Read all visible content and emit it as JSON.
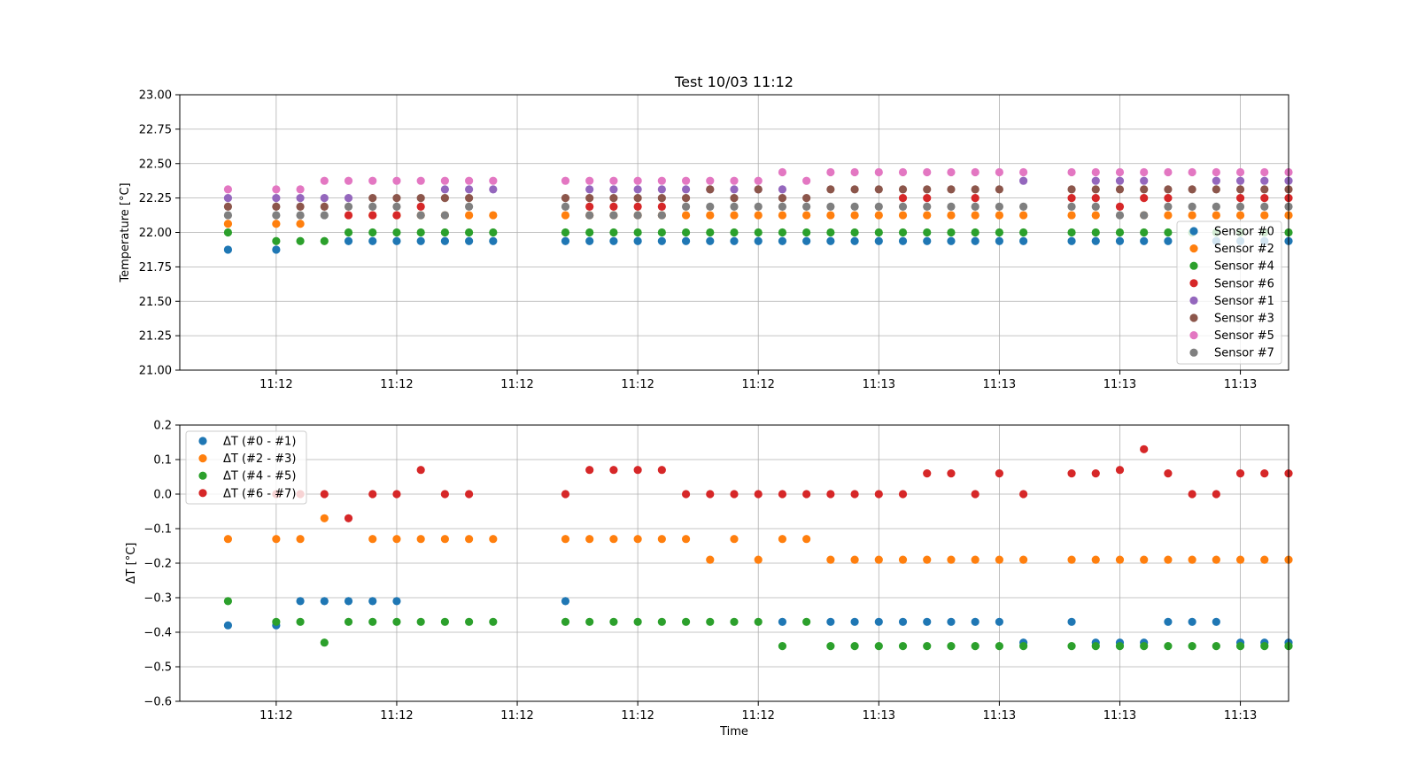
{
  "colors": {
    "c0": "#1f77b4",
    "c1": "#ff7f0e",
    "c2": "#2ca02c",
    "c3": "#d62728",
    "c4": "#9467bd",
    "c5": "#8c564b",
    "c6": "#e377c2",
    "c7": "#7f7f7f",
    "grid": "#b0b0b0",
    "axis": "#000000",
    "legend_border": "#cccccc"
  },
  "chart_data": [
    {
      "type": "scatter",
      "title": "Test 10/03 11:12",
      "xlabel": "",
      "ylabel": "Temperature [°C]",
      "ylim": [
        21.0,
        23.0
      ],
      "yticks": [
        "21.00",
        "21.25",
        "21.50",
        "21.75",
        "22.00",
        "22.25",
        "22.50",
        "22.75",
        "23.00"
      ],
      "xlim": [
        0,
        46
      ],
      "xtick_positions": [
        4,
        9,
        14,
        19,
        24,
        29,
        34,
        39,
        44
      ],
      "xtick_labels": [
        "11:12",
        "11:12",
        "11:12",
        "11:12",
        "11:12",
        "11:13",
        "11:13",
        "11:13",
        "11:13"
      ],
      "grid": true,
      "legend_position": "center-right",
      "x": [
        2,
        4,
        5,
        6,
        7,
        8,
        9,
        10,
        11,
        12,
        13,
        16,
        17,
        18,
        19,
        20,
        21,
        22,
        23,
        24,
        25,
        26,
        27,
        28,
        29,
        30,
        31,
        32,
        33,
        34,
        35,
        36,
        37,
        38,
        39,
        40,
        41,
        42,
        43,
        44,
        45,
        46
      ],
      "series": [
        {
          "name": "Sensor #0",
          "color": "c0",
          "values": [
            21.875,
            21.875,
            null,
            null,
            21.9375,
            21.9375,
            21.9375,
            21.9375,
            21.9375,
            21.9375,
            21.9375,
            21.9375,
            21.9375,
            21.9375,
            21.9375,
            21.9375,
            21.9375,
            21.9375,
            21.9375,
            21.9375,
            21.9375,
            21.9375,
            21.9375,
            21.9375,
            21.9375,
            21.9375,
            21.9375,
            21.9375,
            21.9375,
            21.9375,
            21.9375,
            null,
            21.9375,
            21.9375,
            21.9375,
            21.9375,
            21.9375,
            null,
            21.9375,
            21.9375,
            21.9375,
            21.9375
          ]
        },
        {
          "name": "Sensor #2",
          "color": "c1",
          "values": [
            22.0625,
            22.0625,
            22.0625,
            null,
            null,
            22.125,
            22.125,
            22.125,
            22.125,
            22.125,
            22.125,
            22.125,
            22.125,
            22.125,
            22.125,
            22.125,
            22.125,
            22.125,
            22.125,
            22.125,
            22.125,
            22.125,
            22.125,
            22.125,
            22.125,
            22.125,
            22.125,
            22.125,
            22.125,
            22.125,
            22.125,
            null,
            22.125,
            22.125,
            null,
            22.125,
            22.125,
            22.125,
            22.125,
            22.125,
            22.125,
            22.125
          ]
        },
        {
          "name": "Sensor #4",
          "color": "c2",
          "values": [
            22.0,
            21.9375,
            21.9375,
            21.9375,
            22.0,
            22.0,
            22.0,
            22.0,
            22.0,
            22.0,
            22.0,
            22.0,
            22.0,
            22.0,
            22.0,
            22.0,
            22.0,
            22.0,
            22.0,
            22.0,
            22.0,
            22.0,
            22.0,
            22.0,
            22.0,
            22.0,
            22.0,
            22.0,
            22.0,
            22.0,
            22.0,
            null,
            22.0,
            22.0,
            22.0,
            22.0,
            22.0,
            22.0,
            22.0,
            22.0,
            22.0,
            22.0
          ]
        },
        {
          "name": "Sensor #6",
          "color": "c3",
          "values": [
            null,
            null,
            null,
            null,
            22.125,
            22.125,
            22.125,
            22.1875,
            null,
            null,
            null,
            null,
            22.1875,
            22.1875,
            22.1875,
            22.1875,
            null,
            null,
            null,
            null,
            null,
            null,
            null,
            null,
            null,
            22.25,
            22.25,
            null,
            22.25,
            null,
            null,
            null,
            22.25,
            22.25,
            22.1875,
            22.25,
            22.25,
            null,
            null,
            22.25,
            22.25,
            22.25
          ]
        },
        {
          "name": "Sensor #1",
          "color": "c4",
          "values": [
            22.25,
            22.25,
            22.25,
            22.25,
            22.25,
            null,
            null,
            null,
            22.3125,
            22.3125,
            22.3125,
            null,
            22.3125,
            22.3125,
            22.3125,
            22.3125,
            22.3125,
            22.3125,
            22.3125,
            22.3125,
            22.3125,
            null,
            null,
            null,
            null,
            null,
            null,
            null,
            null,
            null,
            22.375,
            null,
            null,
            22.375,
            22.375,
            22.375,
            null,
            null,
            22.375,
            22.375,
            22.375,
            22.375
          ]
        },
        {
          "name": "Sensor #3",
          "color": "c5",
          "values": [
            22.1875,
            22.1875,
            22.1875,
            22.1875,
            null,
            22.25,
            22.25,
            22.25,
            22.25,
            22.25,
            null,
            22.25,
            22.25,
            22.25,
            22.25,
            22.25,
            22.25,
            22.3125,
            22.25,
            22.3125,
            22.25,
            22.25,
            22.3125,
            22.3125,
            22.3125,
            22.3125,
            22.3125,
            22.3125,
            22.3125,
            22.3125,
            null,
            null,
            22.3125,
            22.3125,
            22.3125,
            22.3125,
            22.3125,
            22.3125,
            22.3125,
            22.3125,
            22.3125,
            22.3125
          ]
        },
        {
          "name": "Sensor #5",
          "color": "c6",
          "values": [
            22.3125,
            22.3125,
            22.3125,
            22.375,
            22.375,
            22.375,
            22.375,
            22.375,
            22.375,
            22.375,
            22.375,
            22.375,
            22.375,
            22.375,
            22.375,
            22.375,
            22.375,
            22.375,
            22.375,
            22.375,
            22.4375,
            22.375,
            22.4375,
            22.4375,
            22.4375,
            22.4375,
            22.4375,
            22.4375,
            22.4375,
            22.4375,
            22.4375,
            null,
            22.4375,
            22.4375,
            22.4375,
            22.4375,
            22.4375,
            22.4375,
            22.4375,
            22.4375,
            22.4375,
            22.4375
          ]
        },
        {
          "name": "Sensor #7",
          "color": "c7",
          "values": [
            22.125,
            22.125,
            22.125,
            22.125,
            22.1875,
            22.1875,
            22.1875,
            22.125,
            22.125,
            22.1875,
            null,
            22.1875,
            22.125,
            22.125,
            22.125,
            22.125,
            22.1875,
            22.1875,
            22.1875,
            22.1875,
            22.1875,
            22.1875,
            22.1875,
            22.1875,
            22.1875,
            22.1875,
            22.1875,
            22.1875,
            22.1875,
            22.1875,
            22.1875,
            null,
            22.1875,
            22.1875,
            22.125,
            22.125,
            22.1875,
            22.1875,
            22.1875,
            22.1875,
            22.1875,
            22.1875
          ]
        }
      ]
    },
    {
      "type": "scatter",
      "title": "",
      "xlabel": "Time",
      "ylabel": "ΔT [°C]",
      "ylim": [
        -0.6,
        0.2
      ],
      "yticks": [
        "−0.6",
        "−0.5",
        "−0.4",
        "−0.3",
        "−0.2",
        "−0.1",
        "0.0",
        "0.1",
        "0.2"
      ],
      "xlim": [
        0,
        46
      ],
      "xtick_positions": [
        4,
        9,
        14,
        19,
        24,
        29,
        34,
        39,
        44
      ],
      "xtick_labels": [
        "11:12",
        "11:12",
        "11:12",
        "11:12",
        "11:12",
        "11:13",
        "11:13",
        "11:13",
        "11:13"
      ],
      "grid": true,
      "legend_position": "upper-left",
      "x": [
        2,
        4,
        5,
        6,
        7,
        8,
        9,
        10,
        11,
        12,
        13,
        16,
        17,
        18,
        19,
        20,
        21,
        22,
        23,
        24,
        25,
        26,
        27,
        28,
        29,
        30,
        31,
        32,
        33,
        34,
        35,
        36,
        37,
        38,
        39,
        40,
        41,
        42,
        43,
        44,
        45,
        46
      ],
      "series": [
        {
          "name": "ΔT (#0 - #1)",
          "color": "c0",
          "values": [
            -0.38,
            -0.38,
            -0.31,
            -0.31,
            -0.31,
            -0.31,
            -0.31,
            null,
            null,
            null,
            null,
            -0.31,
            null,
            null,
            null,
            null,
            null,
            null,
            null,
            null,
            -0.37,
            null,
            -0.37,
            -0.37,
            -0.37,
            -0.37,
            -0.37,
            -0.37,
            -0.37,
            -0.37,
            -0.43,
            null,
            -0.37,
            -0.43,
            -0.43,
            -0.43,
            -0.37,
            -0.37,
            -0.37,
            -0.43,
            -0.43,
            -0.43
          ]
        },
        {
          "name": "ΔT (#2 - #3)",
          "color": "c1",
          "values": [
            -0.13,
            -0.13,
            -0.13,
            -0.07,
            null,
            -0.13,
            -0.13,
            -0.13,
            -0.13,
            -0.13,
            -0.13,
            -0.13,
            -0.13,
            -0.13,
            -0.13,
            -0.13,
            -0.13,
            -0.19,
            -0.13,
            -0.19,
            -0.13,
            -0.13,
            -0.19,
            -0.19,
            -0.19,
            -0.19,
            -0.19,
            -0.19,
            -0.19,
            -0.19,
            -0.19,
            null,
            -0.19,
            -0.19,
            -0.19,
            -0.19,
            -0.19,
            -0.19,
            -0.19,
            -0.19,
            -0.19,
            -0.19
          ]
        },
        {
          "name": "ΔT (#4 - #5)",
          "color": "c2",
          "values": [
            -0.31,
            -0.37,
            -0.37,
            -0.43,
            -0.37,
            -0.37,
            -0.37,
            -0.37,
            -0.37,
            -0.37,
            -0.37,
            -0.37,
            -0.37,
            -0.37,
            -0.37,
            -0.37,
            -0.37,
            -0.37,
            -0.37,
            -0.37,
            -0.44,
            -0.37,
            -0.44,
            -0.44,
            -0.44,
            -0.44,
            -0.44,
            -0.44,
            -0.44,
            -0.44,
            -0.44,
            null,
            -0.44,
            -0.44,
            -0.44,
            -0.44,
            -0.44,
            -0.44,
            -0.44,
            -0.44,
            -0.44,
            -0.44
          ]
        },
        {
          "name": "ΔT (#6 - #7)",
          "color": "c3",
          "values": [
            null,
            0.0,
            0.0,
            0.0,
            -0.07,
            0.0,
            0.0,
            0.07,
            0.0,
            0.0,
            null,
            0.0,
            0.07,
            0.07,
            0.07,
            0.07,
            0.0,
            0.0,
            0.0,
            0.0,
            0.0,
            0.0,
            0.0,
            0.0,
            0.0,
            0.0,
            0.06,
            0.06,
            0.0,
            0.06,
            0.0,
            null,
            0.06,
            0.06,
            0.07,
            0.13,
            0.06,
            0.0,
            0.0,
            0.06,
            0.06,
            0.06
          ]
        }
      ]
    }
  ]
}
